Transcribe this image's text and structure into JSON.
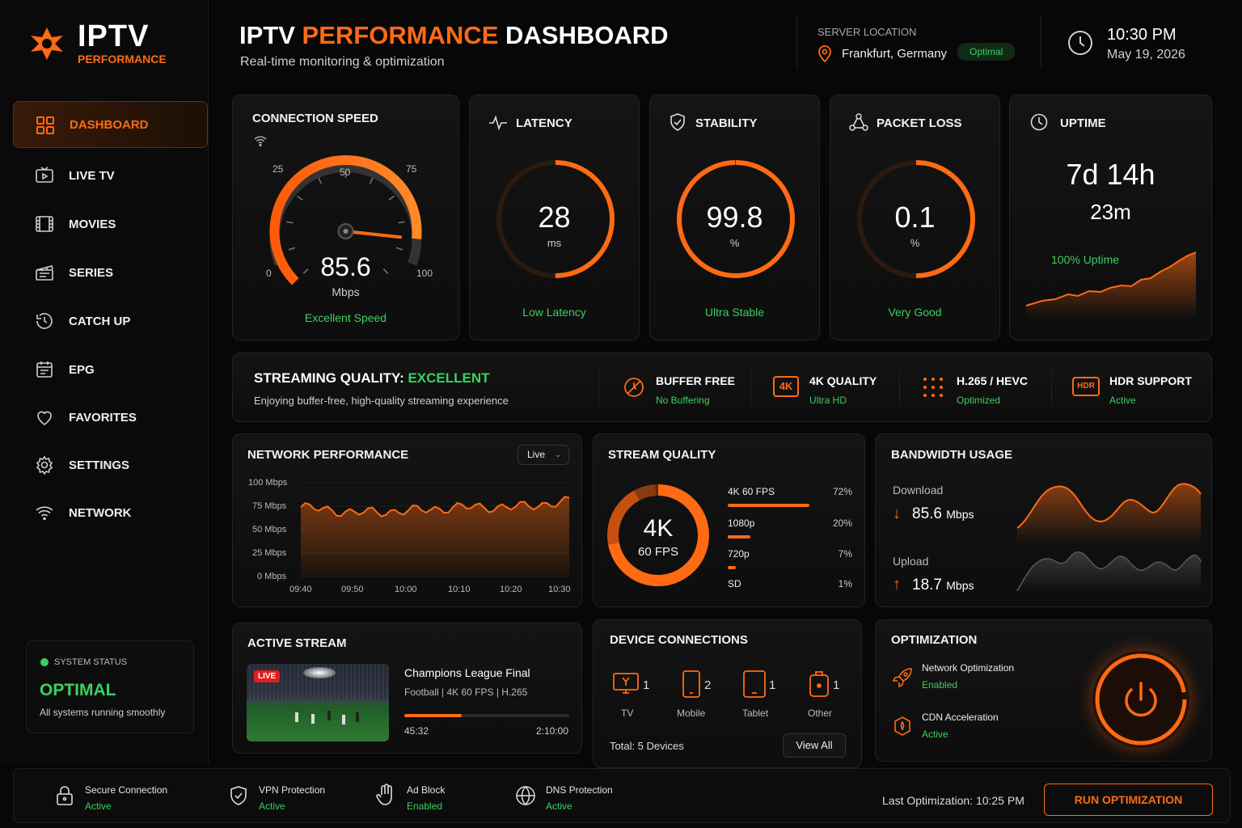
{
  "brand": {
    "title": "IPTV",
    "subtitle": "PERFORMANCE"
  },
  "header": {
    "title_prefix": "IPTV",
    "title_accent": "PERFORMANCE",
    "title_suffix": "DASHBOARD",
    "subtitle": "Real-time monitoring & optimization",
    "server_label": "SERVER LOCATION",
    "server_location": "Frankfurt, Germany",
    "server_status": "Optimal",
    "time": "10:30 PM",
    "date": "May 19, 2026"
  },
  "sidebar": {
    "items": [
      {
        "label": "DASHBOARD",
        "icon": "grid-icon",
        "active": true
      },
      {
        "label": "LIVE TV",
        "icon": "tv-icon"
      },
      {
        "label": "MOVIES",
        "icon": "film-icon"
      },
      {
        "label": "SERIES",
        "icon": "clapper-icon"
      },
      {
        "label": "CATCH UP",
        "icon": "history-icon"
      },
      {
        "label": "EPG",
        "icon": "calendar-icon"
      },
      {
        "label": "FAVORITES",
        "icon": "heart-icon"
      },
      {
        "label": "SETTINGS",
        "icon": "gear-icon"
      },
      {
        "label": "NETWORK",
        "icon": "wifi-icon"
      }
    ],
    "system_status": {
      "label": "SYSTEM STATUS",
      "value": "OPTIMAL",
      "note": "All systems running smoothly"
    }
  },
  "metrics": {
    "speed": {
      "title": "CONNECTION SPEED",
      "value": "85.6",
      "unit": "Mbps",
      "status": "Excellent Speed",
      "gauge_min": 0,
      "gauge_max": 100,
      "ticks": [
        "0",
        "25",
        "50",
        "75",
        "100"
      ]
    },
    "latency": {
      "title": "LATENCY",
      "value": "28",
      "unit": "ms",
      "status": "Low Latency",
      "ring_fraction": 0.5
    },
    "stability": {
      "title": "STABILITY",
      "value": "99.8",
      "unit": "%",
      "status": "Ultra Stable",
      "ring_fraction": 0.998
    },
    "packet_loss": {
      "title": "PACKET LOSS",
      "value": "0.1",
      "unit": "%",
      "status": "Very Good",
      "ring_fraction": 0.5
    },
    "uptime": {
      "title": "UPTIME",
      "value_days": "7d 14h",
      "value_mins": "23m",
      "status": "100% Uptime"
    }
  },
  "streaming": {
    "title": "STREAMING QUALITY:",
    "rating": "EXCELLENT",
    "note": "Enjoying buffer-free, high-quality streaming experience",
    "features": [
      {
        "title": "BUFFER FREE",
        "status": "No Buffering",
        "icon": "no-buffer-icon"
      },
      {
        "title": "4K QUALITY",
        "status": "Ultra HD",
        "icon": "4k-icon",
        "badge": "4K"
      },
      {
        "title": "H.265 / HEVC",
        "status": "Optimized",
        "icon": "codec-icon"
      },
      {
        "title": "HDR SUPPORT",
        "status": "Active",
        "icon": "hdr-icon",
        "badge": "HDR"
      }
    ]
  },
  "network": {
    "title": "NETWORK PERFORMANCE",
    "mode": "Live",
    "y_ticks": [
      "100 Mbps",
      "75 Mbps",
      "50 Mbps",
      "25 Mbps",
      "0 Mbps"
    ],
    "x_ticks": [
      "09:40",
      "09:50",
      "10:00",
      "10:10",
      "10:20",
      "10:30"
    ]
  },
  "chart_data": {
    "type": "area",
    "title": "NETWORK PERFORMANCE",
    "ylim": [
      0,
      100
    ],
    "x": [
      "09:40",
      "09:50",
      "10:00",
      "10:10",
      "10:20",
      "10:30"
    ],
    "y": [
      74,
      68,
      70,
      74,
      74,
      80
    ]
  },
  "stream_quality": {
    "title": "STREAM QUALITY",
    "center_main": "4K",
    "center_sub": "60 FPS",
    "rows": [
      {
        "label": "4K 60 FPS",
        "pct": "72%",
        "value": 72
      },
      {
        "label": "1080p",
        "pct": "20%",
        "value": 20
      },
      {
        "label": "720p",
        "pct": "7%",
        "value": 7
      },
      {
        "label": "SD",
        "pct": "1%",
        "value": 1
      }
    ]
  },
  "bandwidth": {
    "title": "BANDWIDTH USAGE",
    "download_label": "Download",
    "download_value": "85.6",
    "download_unit": "Mbps",
    "upload_label": "Upload",
    "upload_value": "18.7",
    "upload_unit": "Mbps"
  },
  "active_stream": {
    "title": "ACTIVE STREAM",
    "badge": "LIVE",
    "name": "Champions League Final",
    "meta": "Football | 4K 60 FPS | H.265",
    "elapsed": "45:32",
    "duration": "2:10:00",
    "progress": 0.35
  },
  "devices": {
    "title": "DEVICE CONNECTIONS",
    "items": [
      {
        "label": "TV",
        "count": "1",
        "icon": "tv-icon"
      },
      {
        "label": "Mobile",
        "count": "2",
        "icon": "mobile-icon"
      },
      {
        "label": "Tablet",
        "count": "1",
        "icon": "tablet-icon"
      },
      {
        "label": "Other",
        "count": "1",
        "icon": "device-icon"
      }
    ],
    "total": "Total: 5 Devices",
    "view_all": "View All"
  },
  "optimization": {
    "title": "OPTIMIZATION",
    "items": [
      {
        "title": "Network Optimization",
        "status": "Enabled"
      },
      {
        "title": "CDN Acceleration",
        "status": "Active"
      }
    ]
  },
  "footer": {
    "items": [
      {
        "title": "Secure Connection",
        "status": "Active"
      },
      {
        "title": "VPN Protection",
        "status": "Active"
      },
      {
        "title": "Ad Block",
        "status": "Enabled"
      },
      {
        "title": "DNS Protection",
        "status": "Active"
      }
    ],
    "last_optimization": "Last Optimization: 10:25 PM",
    "run_button": "RUN OPTIMIZATION"
  },
  "colors": {
    "accent": "#ff6a13",
    "good": "#3ad160",
    "background": "#070707"
  }
}
